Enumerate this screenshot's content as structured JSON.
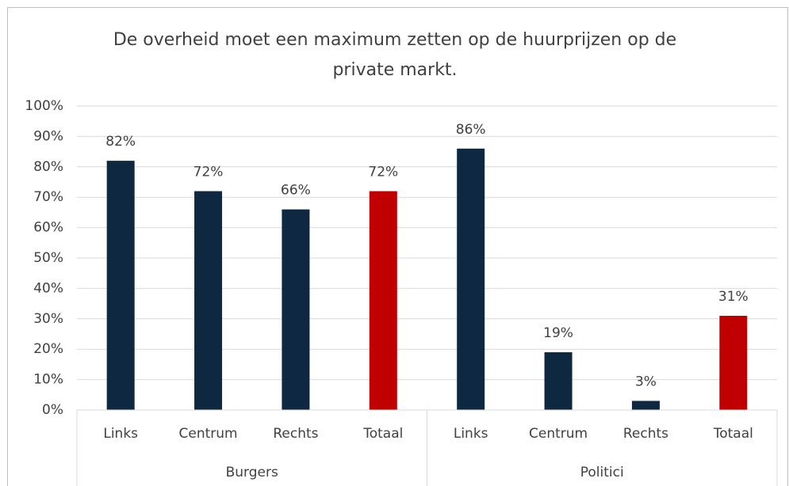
{
  "chart_data": {
    "type": "bar",
    "title": "De overheid moet een maximum zetten op de huurprijzen op de private markt.",
    "categories": [
      "Links",
      "Centrum",
      "Rechts",
      "Totaal",
      "Links",
      "Centrum",
      "Rechts",
      "Totaal"
    ],
    "groups": [
      "Burgers",
      "Politici"
    ],
    "values": [
      82,
      72,
      66,
      72,
      86,
      19,
      3,
      31
    ],
    "value_labels": [
      "82%",
      "72%",
      "66%",
      "72%",
      "86%",
      "19%",
      "3%",
      "31%"
    ],
    "colors": [
      "#0e2841",
      "#0e2841",
      "#0e2841",
      "#c00000",
      "#0e2841",
      "#0e2841",
      "#0e2841",
      "#c00000"
    ],
    "ylim": [
      0,
      100
    ],
    "yticks": [
      {
        "value": 0,
        "label": "0%"
      },
      {
        "value": 10,
        "label": "10%"
      },
      {
        "value": 20,
        "label": "20%"
      },
      {
        "value": 30,
        "label": "30%"
      },
      {
        "value": 40,
        "label": "40%"
      },
      {
        "value": 50,
        "label": "50%"
      },
      {
        "value": 60,
        "label": "60%"
      },
      {
        "value": 70,
        "label": "70%"
      },
      {
        "value": 80,
        "label": "80%"
      },
      {
        "value": 90,
        "label": "90%"
      },
      {
        "value": 100,
        "label": "100%"
      }
    ],
    "grid": true
  }
}
